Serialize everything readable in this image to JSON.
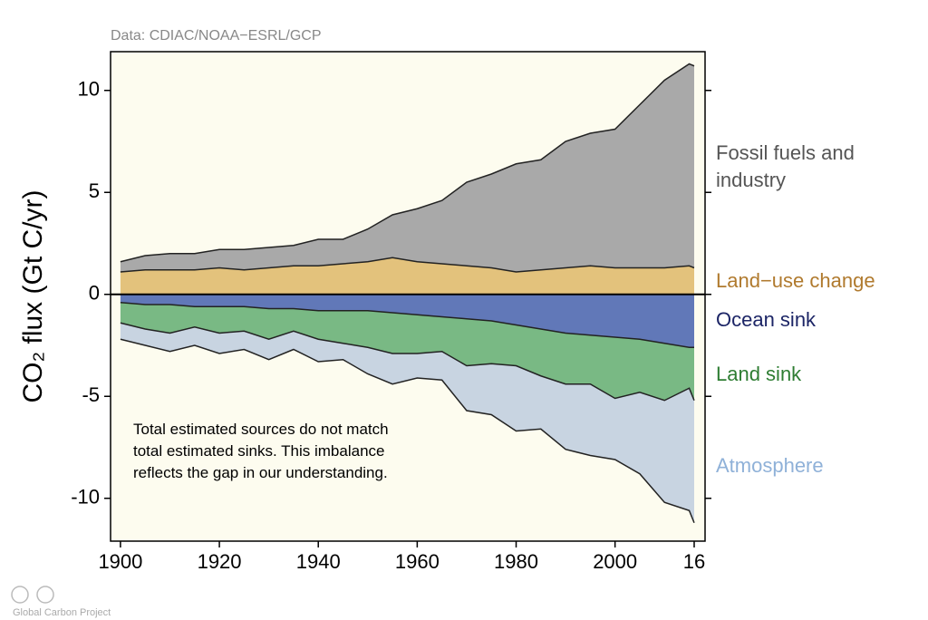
{
  "chart_data": {
    "type": "stacked_area",
    "source": "Data: CDIAC/NOAA−ESRL/GCP",
    "ylabel": "CO₂ flux (Gt C/yr)",
    "annotation": "Total estimated sources do not match total estimated sinks. This imbalance reflects the gap in our understanding.",
    "footer": "Global Carbon Project",
    "background": "#fdfcef",
    "x": [
      1900,
      1905,
      1910,
      1915,
      1920,
      1925,
      1930,
      1935,
      1940,
      1945,
      1950,
      1955,
      1960,
      1965,
      1970,
      1975,
      1980,
      1985,
      1990,
      1995,
      2000,
      2005,
      2010,
      2015,
      2016
    ],
    "xlim": [
      1898,
      2018.2
    ],
    "xticks": [
      1900,
      1920,
      1940,
      1960,
      1980,
      2000,
      {
        "value": 2016,
        "label": "16"
      }
    ],
    "ylim": [
      -12.1,
      11.9
    ],
    "yticks": [
      -10,
      -5,
      0,
      5,
      10
    ],
    "series": [
      {
        "name": "Land−use change",
        "color": "#e3c27c",
        "label_color": "#b07a2e",
        "values": [
          1.1,
          1.2,
          1.2,
          1.2,
          1.3,
          1.2,
          1.3,
          1.4,
          1.4,
          1.5,
          1.6,
          1.8,
          1.6,
          1.5,
          1.4,
          1.3,
          1.1,
          1.2,
          1.3,
          1.4,
          1.3,
          1.3,
          1.3,
          1.4,
          1.3
        ]
      },
      {
        "name": "Fossil fuels and industry",
        "color": "#a9a9a9",
        "label_color": "#555555",
        "values": [
          0.5,
          0.7,
          0.8,
          0.8,
          0.9,
          1.0,
          1.0,
          1.0,
          1.3,
          1.2,
          1.6,
          2.1,
          2.6,
          3.1,
          4.1,
          4.6,
          5.3,
          5.4,
          6.2,
          6.5,
          6.8,
          8.0,
          9.2,
          9.9,
          9.9
        ]
      },
      {
        "name": "Ocean sink",
        "color": "#6178b8",
        "label_color": "#1c2566",
        "values": [
          -0.4,
          -0.5,
          -0.5,
          -0.6,
          -0.6,
          -0.6,
          -0.7,
          -0.7,
          -0.8,
          -0.8,
          -0.8,
          -0.9,
          -1.0,
          -1.1,
          -1.2,
          -1.3,
          -1.5,
          -1.7,
          -1.9,
          -2.0,
          -2.1,
          -2.2,
          -2.4,
          -2.6,
          -2.6
        ]
      },
      {
        "name": "Land sink",
        "color": "#79b984",
        "label_color": "#2e7d32",
        "values": [
          -1.0,
          -1.2,
          -1.4,
          -1.0,
          -1.3,
          -1.2,
          -1.5,
          -1.1,
          -1.4,
          -1.6,
          -1.8,
          -2.0,
          -1.9,
          -1.7,
          -2.3,
          -2.1,
          -2.0,
          -2.3,
          -2.5,
          -2.4,
          -3.0,
          -2.6,
          -2.8,
          -2.0,
          -2.6
        ]
      },
      {
        "name": "Atmosphere",
        "color": "#c8d4e1",
        "label_color": "#8fb1d8",
        "values": [
          -0.8,
          -0.8,
          -0.9,
          -0.9,
          -1.0,
          -0.9,
          -1.0,
          -0.9,
          -1.1,
          -0.8,
          -1.3,
          -1.5,
          -1.2,
          -1.4,
          -2.2,
          -2.5,
          -3.2,
          -2.6,
          -3.2,
          -3.5,
          -3.0,
          -4.0,
          -5.0,
          -6.0,
          -6.0
        ]
      }
    ]
  }
}
